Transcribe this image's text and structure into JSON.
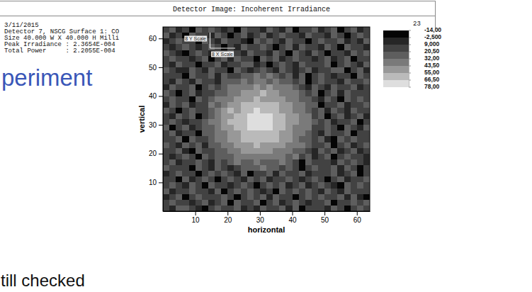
{
  "chart_data": {
    "type": "heatmap",
    "title": "Detector Image: Incoherent Irradiance",
    "header_lines": [
      "3/11/2015",
      "Detector 7, NSCG Surface 1: CO",
      "Size 40.000 W X 40.000 H Milli",
      "Peak Irradiance : 2.3654E-004",
      "Total Power     : 2.2055E-004"
    ],
    "header_note": "23",
    "annotations": [
      "8 Y Scale",
      "8 X Scale"
    ],
    "x_label": "horizontal",
    "y_label": "vertical",
    "x": [
      1,
      3,
      5,
      7,
      9,
      11,
      13,
      15,
      17,
      19,
      21,
      23,
      25,
      27,
      29,
      31,
      33,
      35,
      37,
      39,
      41,
      43,
      45,
      47,
      49,
      51,
      53,
      55,
      57,
      59,
      61,
      63
    ],
    "y": [
      63,
      61,
      59,
      57,
      55,
      53,
      51,
      49,
      47,
      45,
      43,
      41,
      39,
      37,
      35,
      33,
      31,
      29,
      27,
      25,
      23,
      21,
      19,
      17,
      15,
      13,
      11,
      9,
      7,
      5,
      3,
      1
    ],
    "cells": [
      [
        12,
        25,
        3,
        18,
        -5,
        22,
        9,
        27,
        15,
        6,
        20,
        -8,
        24,
        11,
        17,
        2,
        26,
        14,
        8,
        21,
        -3,
        19,
        10,
        28,
        5,
        16,
        23,
        -6,
        13,
        25,
        7,
        20
      ],
      [
        21,
        8,
        16,
        -4,
        26,
        13,
        19,
        4,
        23,
        10,
        -9,
        17,
        28,
        6,
        14,
        22,
        1,
        18,
        25,
        9,
        15,
        -2,
        27,
        12,
        20,
        3,
        24,
        16,
        -7,
        11,
        22,
        14
      ],
      [
        5,
        19,
        27,
        11,
        14,
        -6,
        23,
        17,
        2,
        25,
        13,
        20,
        8,
        -3,
        26,
        15,
        21,
        10,
        4,
        24,
        16,
        12,
        -5,
        19,
        28,
        9,
        14,
        22,
        6,
        17,
        -1,
        25
      ],
      [
        17,
        -2,
        10,
        24,
        20,
        7,
        15,
        29,
        12,
        -7,
        18,
        4,
        22,
        16,
        9,
        25,
        13,
        -4,
        20,
        27,
        6,
        23,
        15,
        11,
        2,
        21,
        18,
        -8,
        26,
        14,
        10,
        3
      ],
      [
        24,
        14,
        6,
        -7,
        17,
        26,
        11,
        3,
        20,
        15,
        23,
        9,
        -1,
        27,
        19,
        12,
        6,
        24,
        16,
        -3,
        21,
        14,
        8,
        26,
        17,
        -6,
        12,
        20,
        5,
        23,
        16,
        28
      ],
      [
        9,
        22,
        18,
        13,
        1,
        16,
        25,
        -4,
        14,
        21,
        7,
        26,
        15,
        10,
        -5,
        22,
        18,
        28,
        2,
        13,
        25,
        10,
        20,
        -2,
        15,
        23,
        8,
        17,
        27,
        -9,
        19,
        11
      ],
      [
        16,
        4,
        25,
        20,
        11,
        -8,
        19,
        13,
        27,
        2,
        16,
        12,
        21,
        24,
        8,
        17,
        -3,
        11,
        23,
        19,
        6,
        27,
        14,
        18,
        9,
        25,
        -4,
        13,
        21,
        16,
        2,
        22
      ],
      [
        26,
        13,
        -1,
        8,
        23,
        18,
        5,
        21,
        10,
        19,
        -6,
        24,
        14,
        3,
        20,
        27,
        15,
        7,
        22,
        12,
        -2,
        18,
        25,
        4,
        16,
        11,
        21,
        28,
        -5,
        19,
        24,
        8
      ],
      [
        11,
        20,
        15,
        -3,
        24,
        9,
        17,
        22,
        6,
        25,
        14,
        19,
        27,
        31,
        34,
        30,
        33,
        28,
        16,
        23,
        8,
        21,
        -4,
        13,
        26,
        18,
        5,
        20,
        12,
        -7,
        24,
        15
      ],
      [
        19,
        7,
        23,
        14,
        -2,
        26,
        12,
        18,
        4,
        21,
        26,
        30,
        34,
        29,
        36,
        33,
        31,
        35,
        28,
        25,
        17,
        22,
        -5,
        14,
        25,
        9,
        19,
        3,
        23,
        16,
        11,
        27
      ],
      [
        4,
        24,
        17,
        10,
        21,
        -6,
        15,
        27,
        13,
        29,
        33,
        38,
        42,
        36,
        45,
        40,
        44,
        37,
        41,
        32,
        28,
        20,
        6,
        24,
        15,
        -1,
        22,
        12,
        18,
        26,
        8,
        17
      ],
      [
        22,
        13,
        -4,
        19,
        25,
        8,
        16,
        11,
        31,
        27,
        39,
        43,
        46,
        52,
        48,
        55,
        50,
        44,
        38,
        42,
        33,
        29,
        14,
        24,
        -8,
        17,
        21,
        5,
        26,
        12,
        19,
        10
      ],
      [
        15,
        27,
        9,
        20,
        -3,
        23,
        12,
        28,
        34,
        41,
        37,
        49,
        54,
        47,
        56,
        51,
        53,
        46,
        50,
        43,
        39,
        30,
        26,
        18,
        7,
        25,
        13,
        -5,
        21,
        16,
        24,
        10
      ],
      [
        8,
        21,
        16,
        26,
        4,
        14,
        19,
        32,
        29,
        42,
        48,
        53,
        58,
        63,
        61,
        65,
        59,
        62,
        51,
        47,
        40,
        35,
        27,
        22,
        -6,
        17,
        11,
        25,
        3,
        20,
        14,
        27
      ],
      [
        25,
        11,
        -7,
        18,
        22,
        9,
        17,
        31,
        38,
        44,
        55,
        49,
        64,
        60,
        67,
        62,
        66,
        58,
        53,
        50,
        43,
        40,
        30,
        16,
        24,
        6,
        21,
        13,
        -2,
        26,
        9,
        19
      ],
      [
        18,
        5,
        23,
        13,
        26,
        -4,
        20,
        28,
        41,
        45,
        52,
        61,
        65,
        72,
        76,
        70,
        74,
        63,
        59,
        54,
        46,
        39,
        33,
        12,
        22,
        -9,
        18,
        25,
        8,
        15,
        23,
        4
      ],
      [
        10,
        24,
        16,
        -1,
        19,
        13,
        27,
        33,
        40,
        50,
        56,
        60,
        66,
        77,
        71,
        75,
        69,
        64,
        61,
        53,
        48,
        42,
        34,
        29,
        17,
        25,
        6,
        20,
        11,
        27,
        -3,
        16
      ],
      [
        21,
        -5,
        14,
        26,
        8,
        17,
        23,
        30,
        39,
        44,
        51,
        58,
        63,
        74,
        68,
        73,
        71,
        60,
        62,
        49,
        43,
        37,
        32,
        19,
        9,
        24,
        14,
        -7,
        22,
        17,
        5,
        25
      ],
      [
        13,
        27,
        6,
        20,
        15,
        -8,
        24,
        29,
        42,
        37,
        47,
        54,
        61,
        66,
        59,
        64,
        57,
        63,
        52,
        46,
        41,
        38,
        31,
        20,
        4,
        26,
        15,
        10,
        23,
        -4,
        18,
        12
      ],
      [
        17,
        9,
        22,
        -3,
        25,
        12,
        19,
        28,
        33,
        39,
        50,
        46,
        57,
        62,
        58,
        60,
        56,
        59,
        48,
        52,
        42,
        30,
        26,
        14,
        23,
        8,
        -6,
        21,
        16,
        27,
        11,
        20
      ],
      [
        24,
        14,
        1,
        21,
        16,
        26,
        -2,
        27,
        31,
        38,
        43,
        47,
        52,
        45,
        55,
        49,
        51,
        44,
        48,
        40,
        36,
        33,
        25,
        9,
        19,
        24,
        -5,
        13,
        22,
        7,
        17,
        26
      ],
      [
        11,
        19,
        25,
        7,
        -6,
        23,
        15,
        20,
        26,
        30,
        37,
        41,
        44,
        49,
        46,
        51,
        47,
        40,
        43,
        36,
        28,
        31,
        16,
        8,
        22,
        13,
        26,
        -1,
        19,
        24,
        3,
        15
      ],
      [
        20,
        6,
        17,
        24,
        12,
        -9,
        22,
        14,
        27,
        31,
        26,
        36,
        40,
        35,
        43,
        38,
        41,
        34,
        39,
        29,
        33,
        13,
        21,
        5,
        18,
        25,
        -3,
        16,
        23,
        10,
        20,
        7
      ],
      [
        14,
        23,
        -2,
        16,
        9,
        27,
        19,
        5,
        21,
        12,
        28,
        32,
        25,
        30,
        34,
        27,
        31,
        26,
        33,
        29,
        18,
        -7,
        24,
        11,
        20,
        15,
        3,
        26,
        13,
        22,
        17,
        8
      ],
      [
        26,
        10,
        19,
        13,
        -4,
        21,
        17,
        8,
        24,
        15,
        2,
        20,
        25,
        30,
        27,
        32,
        28,
        26,
        11,
        23,
        17,
        -5,
        14,
        26,
        9,
        19,
        21,
        6,
        24,
        13,
        -3,
        18
      ],
      [
        7,
        18,
        24,
        12,
        20,
        -5,
        15,
        26,
        10,
        22,
        17,
        3,
        25,
        -8,
        19,
        13,
        21,
        6,
        27,
        14,
        9,
        23,
        -1,
        16,
        20,
        11,
        26,
        4,
        18,
        22,
        -6,
        13
      ],
      [
        20,
        12,
        -3,
        25,
        8,
        16,
        22,
        11,
        -7,
        19,
        26,
        14,
        5,
        21,
        17,
        24,
        -2,
        15,
        10,
        23,
        18,
        2,
        20,
        27,
        13,
        -9,
        16,
        24,
        7,
        19,
        14,
        25
      ],
      [
        13,
        26,
        17,
        4,
        21,
        11,
        -6,
        23,
        18,
        14,
        2,
        20,
        27,
        9,
        -4,
        16,
        22,
        12,
        25,
        -1,
        17,
        26,
        8,
        14,
        21,
        19,
        5,
        -7,
        23,
        12,
        27,
        9
      ],
      [
        23,
        -1,
        9,
        19,
        27,
        14,
        18,
        3,
        24,
        -5,
        12,
        22,
        16,
        26,
        11,
        7,
        19,
        -8,
        23,
        15,
        21,
        10,
        28,
        17,
        -2,
        22,
        12,
        6,
        25,
        16,
        20,
        11
      ],
      [
        6,
        17,
        22,
        -8,
        13,
        24,
        9,
        20,
        15,
        27,
        18,
        -4,
        10,
        23,
        14,
        21,
        3,
        26,
        12,
        19,
        -6,
        16,
        24,
        9,
        27,
        14,
        18,
        21,
        1,
        24,
        8,
        -3
      ],
      [
        19,
        24,
        11,
        16,
        -2,
        20,
        26,
        7,
        13,
        21,
        -7,
        25,
        18,
        12,
        27,
        -3,
        15,
        22,
        8,
        17,
        24,
        13,
        4,
        20,
        11,
        26,
        -5,
        15,
        19,
        22,
        10,
        27
      ],
      [
        11,
        3,
        26,
        21,
        15,
        8,
        -9,
        17,
        22,
        12,
        19,
        27,
        6,
        16,
        -1,
        24,
        10,
        14,
        25,
        5,
        22,
        -4,
        19,
        13,
        16,
        8,
        24,
        20,
        -6,
        14,
        25,
        17
      ]
    ],
    "xlim": [
      0,
      64
    ],
    "ylim": [
      0,
      64
    ],
    "xticks": [
      10,
      20,
      30,
      40,
      50,
      60
    ],
    "yticks": [
      10,
      20,
      30,
      40,
      50,
      60
    ],
    "colorbar": {
      "lim": [
        -14,
        78
      ],
      "ticks": [
        {
          "value": -14,
          "label": "-14,00"
        },
        {
          "value": -2.5,
          "label": "-2,500"
        },
        {
          "value": 9,
          "label": "9,000"
        },
        {
          "value": 20.5,
          "label": "20,50"
        },
        {
          "value": 32,
          "label": "32,00"
        },
        {
          "value": 43.5,
          "label": "43,50"
        },
        {
          "value": 55,
          "label": "55,00"
        },
        {
          "value": 66.5,
          "label": "66,50"
        },
        {
          "value": 78,
          "label": "78,00"
        }
      ],
      "colors": [
        "#050505",
        "#262626",
        "#424242",
        "#5e5e5e",
        "#7a7a7a",
        "#989898",
        "#bababa",
        "#dedede"
      ]
    }
  },
  "slide": {
    "heading": "periment",
    "body": "till checked"
  }
}
